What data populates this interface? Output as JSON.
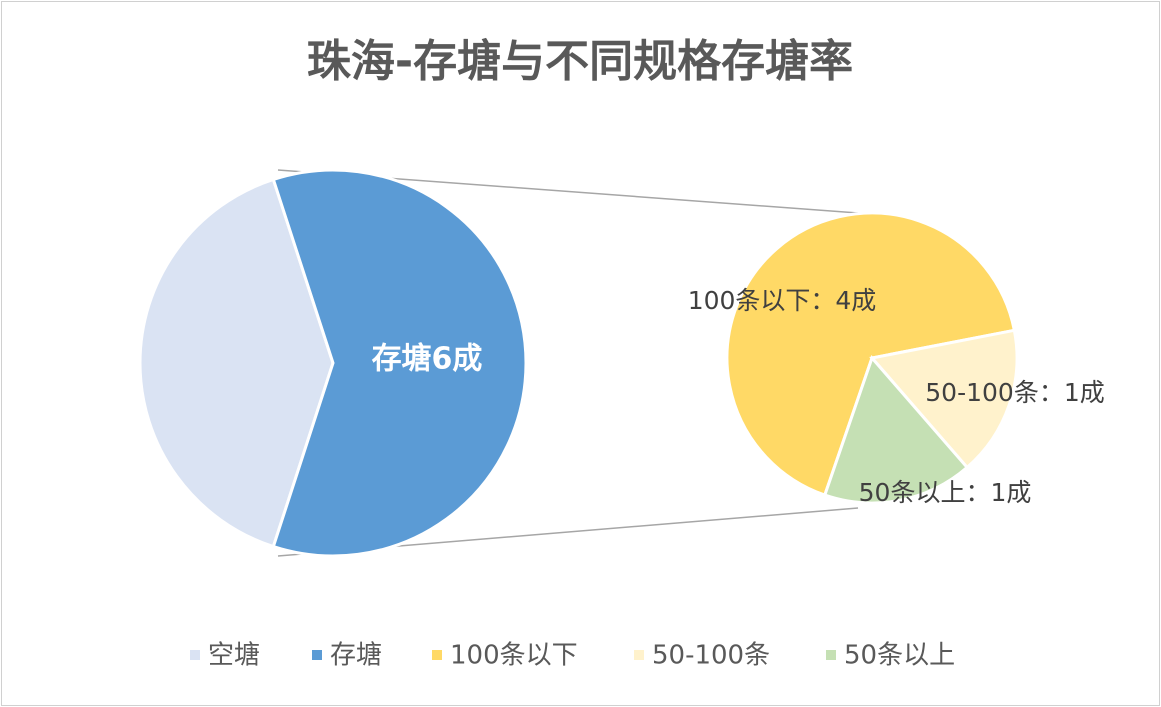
{
  "chart_data": {
    "type": "pie-of-pie",
    "title": "珠海-存塘与不同规格存塘率",
    "categories": [
      "空塘",
      "存塘"
    ],
    "values": [
      4,
      6
    ],
    "value_labels": [
      null,
      "存塘6成"
    ],
    "colors": [
      "#dae3f3",
      "#5b9bd5"
    ],
    "sub": {
      "categories": [
        "100条以下",
        "50-100条",
        "50条以上"
      ],
      "values": [
        4,
        1,
        1
      ],
      "value_labels": [
        "100条以下：4成",
        "50-100条：1成",
        "50条以上：1成"
      ],
      "colors": [
        "#ffd966",
        "#fff2cc",
        "#c5e0b4"
      ]
    },
    "legend": "bottom"
  }
}
